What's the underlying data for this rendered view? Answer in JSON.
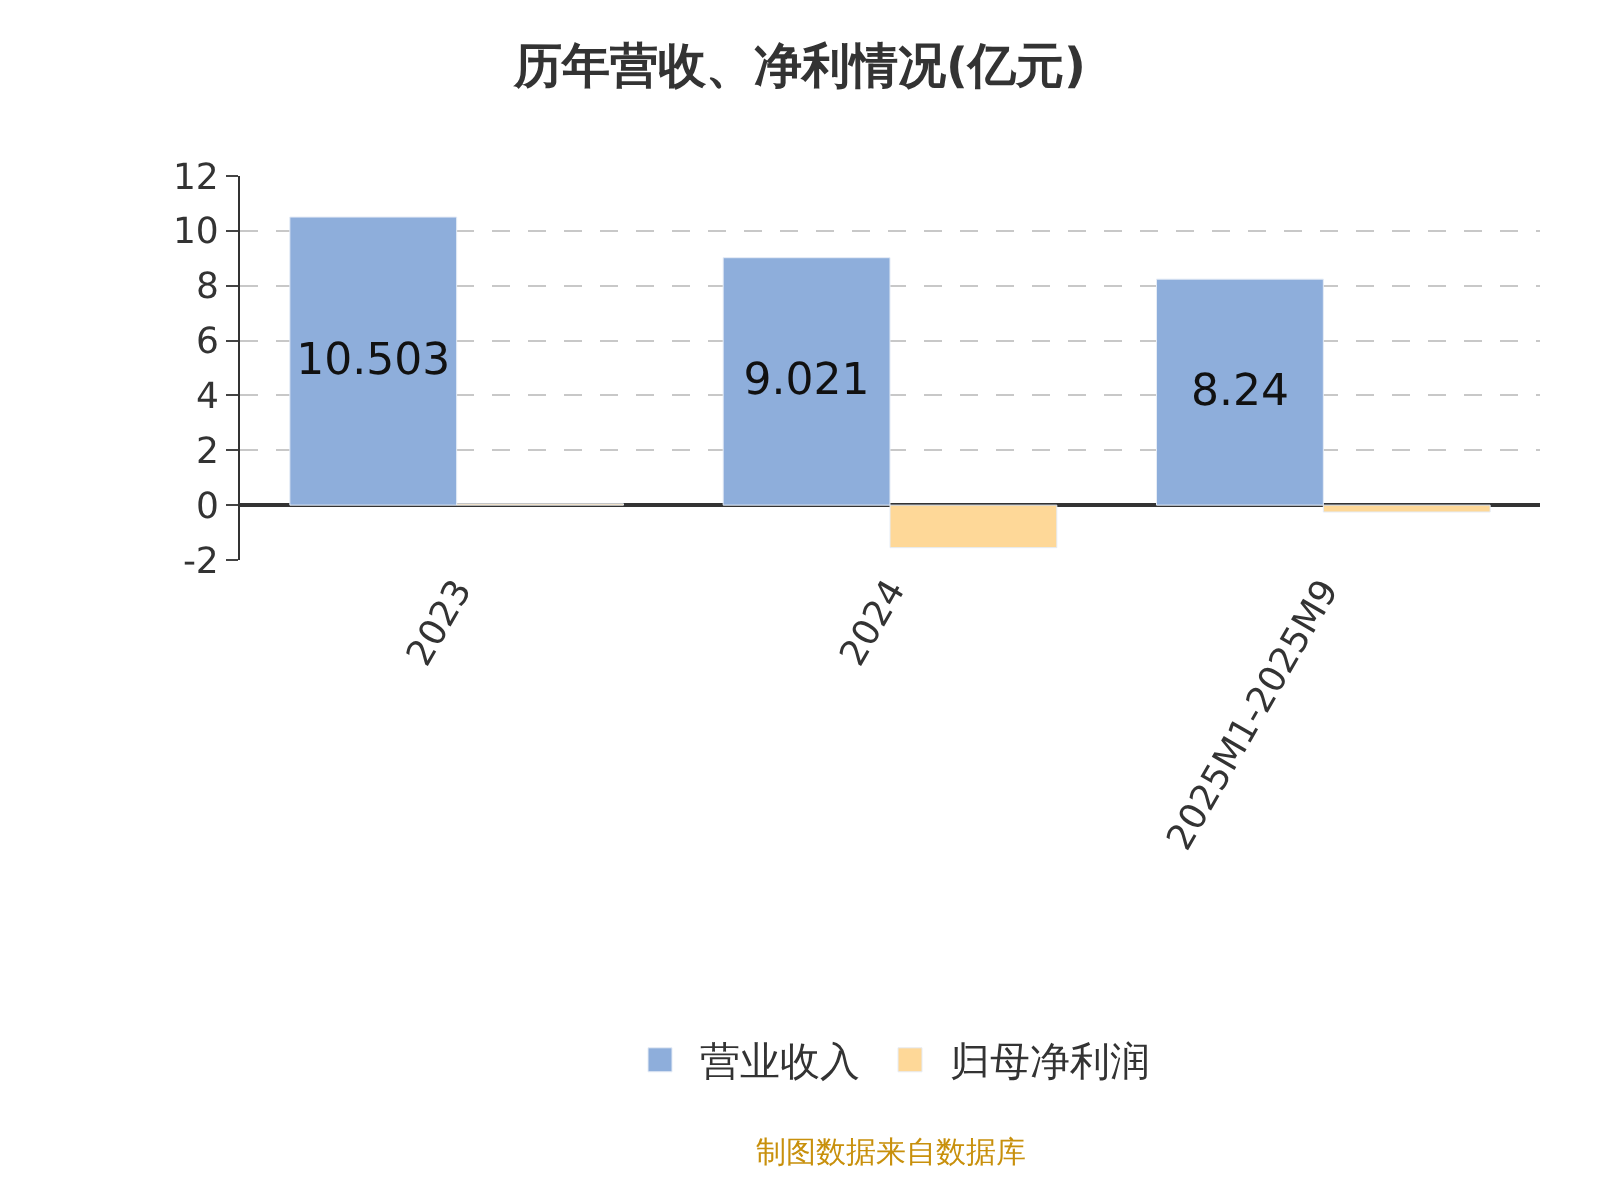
{
  "chart_data": {
    "type": "bar",
    "title": "历年营收、净利情况(亿元)",
    "categories": [
      "2023",
      "2024",
      "2025M1-2025M9"
    ],
    "series": [
      {
        "name": "营业收入",
        "color": "#8eaedb",
        "values": [
          10.503,
          9.021,
          8.24
        ],
        "value_labels": [
          "10.503",
          "9.021",
          "8.24"
        ]
      },
      {
        "name": "归母净利润",
        "color": "#fed898",
        "values": [
          0.05,
          -1.55,
          -0.25
        ],
        "value_labels": [
          null,
          null,
          null
        ]
      }
    ],
    "ylim": [
      -2,
      12
    ],
    "yticks": [
      -2,
      0,
      2,
      4,
      6,
      8,
      10,
      12
    ],
    "grid": "y",
    "legend": "bottom",
    "annotations": [
      "制图数据来自数据库"
    ]
  }
}
